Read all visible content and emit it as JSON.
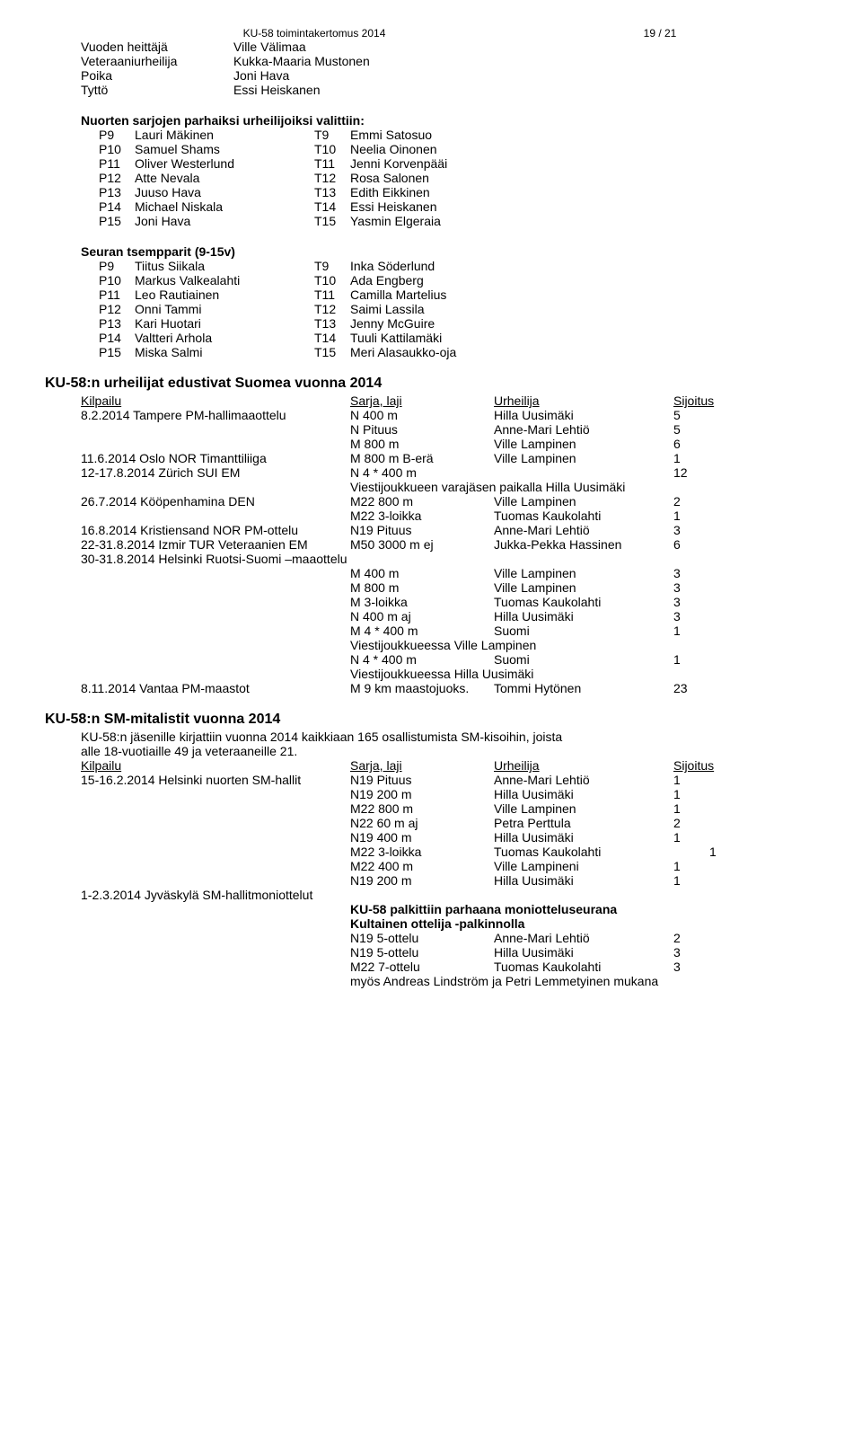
{
  "header": {
    "title": "KU-58  toimintakertomus 2014",
    "page": "19 / 21"
  },
  "awards": [
    {
      "label": "Vuoden heittäjä",
      "name": "Ville Välimaa"
    },
    {
      "label": "Veteraaniurheilija",
      "name": "Kukka-Maaria Mustonen"
    },
    {
      "label": "Poika",
      "name": "Joni Hava"
    },
    {
      "label": "Tyttö",
      "name": "Essi Heiskanen"
    }
  ],
  "nuorten_title": "Nuorten sarjojen parhaiksi urheilijoiksi valittiin:",
  "nuorten": [
    {
      "p": "P9",
      "pn": "Lauri Mäkinen",
      "t": "T9",
      "tn": "Emmi Satosuo"
    },
    {
      "p": "P10",
      "pn": "Samuel Shams",
      "t": "T10",
      "tn": "Neelia Oinonen"
    },
    {
      "p": "P11",
      "pn": "Oliver Westerlund",
      "t": "T11",
      "tn": "Jenni Korvenpääi"
    },
    {
      "p": "P12",
      "pn": "Atte Nevala",
      "t": "T12",
      "tn": "Rosa Salonen"
    },
    {
      "p": "P13",
      "pn": "Juuso Hava",
      "t": "T13",
      "tn": "Edith Eikkinen"
    },
    {
      "p": "P14",
      "pn": "Michael Niskala",
      "t": "T14",
      "tn": "Essi Heiskanen"
    },
    {
      "p": "P15",
      "pn": "Joni Hava",
      "t": "T15",
      "tn": "Yasmin Elgeraia"
    }
  ],
  "tsempparit_title": "Seuran tsempparit (9-15v)",
  "tsempparit": [
    {
      "p": "P9",
      "pn": "Tiitus Siikala",
      "t": "T9",
      "tn": "Inka Söderlund"
    },
    {
      "p": "P10",
      "pn": "Markus Valkealahti",
      "t": "T10",
      "tn": "Ada Engberg"
    },
    {
      "p": "P11",
      "pn": "Leo Rautiainen",
      "t": "T11",
      "tn": "Camilla Martelius"
    },
    {
      "p": "P12",
      "pn": "Onni Tammi",
      "t": "T12",
      "tn": "Saimi Lassila"
    },
    {
      "p": "P13",
      "pn": "Kari Huotari",
      "t": "T13",
      "tn": "Jenny McGuire"
    },
    {
      "p": "P14",
      "pn": "Valtteri Arhola",
      "t": "T14",
      "tn": "Tuuli Kattilamäki"
    },
    {
      "p": "P15",
      "pn": "Miska Salmi",
      "t": "T15",
      "tn": "Meri Alasaukko-oja"
    }
  ],
  "suomea_title": "KU-58:n urheilijat edustivat Suomea vuonna 2014",
  "thead": {
    "c1": "Kilpailu",
    "c2": "Sarja, laji",
    "c3": "Urheilija",
    "c4": "Sijoitus"
  },
  "suomea": [
    {
      "k1": "8.2.2014 Tampere PM-hallimaaottelu",
      "k2": "N 400 m",
      "k3": "Hilla Uusimäki",
      "k4": "5"
    },
    {
      "k1": "",
      "k2": "N Pituus",
      "k3": "Anne-Mari Lehtiö",
      "k4": "5"
    },
    {
      "k1": "",
      "k2": "M 800 m",
      "k3": "Ville Lampinen",
      "k4": "6"
    },
    {
      "k1": "11.6.2014 Oslo NOR Timanttiliiga",
      "k2": "M 800 m B-erä",
      "k3": "Ville Lampinen",
      "k4": "1"
    },
    {
      "k1": "12-17.8.2014 Zürich SUI EM",
      "k2": "N 4 * 400 m",
      "k3": "",
      "k4": "12"
    }
  ],
  "suomea_note1": "Viestijoukkueen varajäsen paikalla Hilla Uusimäki",
  "suomea2": [
    {
      "k1": "26.7.2014 Kööpenhamina DEN",
      "k2": "M22 800 m",
      "k3": "Ville Lampinen",
      "k4": "2"
    },
    {
      "k1": "",
      "k2": "M22 3-loikka",
      "k3": "Tuomas Kaukolahti",
      "k4": "1"
    },
    {
      "k1": "16.8.2014 Kristiensand NOR PM-ottelu",
      "k2": "N19 Pituus",
      "k3": "Anne-Mari Lehtiö",
      "k4": "3"
    },
    {
      "k1": "22-31.8.2014 Izmir TUR Veteraanien EM",
      "k2": "M50 3000 m ej",
      "k3": "Jukka-Pekka Hassinen",
      "k4": "6"
    },
    {
      "k1": "30-31.8.2014 Helsinki Ruotsi-Suomi –maaottelu",
      "k2": "",
      "k3": "",
      "k4": ""
    },
    {
      "k1": "",
      "k2": "M 400 m",
      "k3": "Ville Lampinen",
      "k4": "3"
    },
    {
      "k1": "",
      "k2": "M 800 m",
      "k3": "Ville Lampinen",
      "k4": "3"
    },
    {
      "k1": "",
      "k2": "M 3-loikka",
      "k3": "Tuomas Kaukolahti",
      "k4": "3"
    },
    {
      "k1": "",
      "k2": "N 400 m aj",
      "k3": "Hilla Uusimäki",
      "k4": "3"
    },
    {
      "k1": "",
      "k2": "M 4 * 400 m",
      "k3": "Suomi",
      "k4": "1"
    }
  ],
  "suomea_note2": "Viestijoukkueessa Ville Lampinen",
  "suomea3": [
    {
      "k1": "",
      "k2": "N 4 * 400 m",
      "k3": "Suomi",
      "k4": "1"
    }
  ],
  "suomea_note3": "Viestijoukkueessa Hilla Uusimäki",
  "suomea4": [
    {
      "k1": "8.11.2014 Vantaa PM-maastot",
      "k2": "M 9 km maastojuoks.",
      "k3": "Tommi Hytönen",
      "k4": "23"
    }
  ],
  "sm_title": "KU-58:n SM-mitalistit vuonna 2014",
  "sm_intro1": "KU-58:n jäsenille kirjattiin vuonna 2014 kaikkiaan 165 osallistumista SM-kisoihin, joista",
  "sm_intro2": "alle 18-vuotiaille 49 ja veteraaneille 21.",
  "sm": [
    {
      "k1": "15-16.2.2014 Helsinki nuorten SM-hallit",
      "k2": "N19 Pituus",
      "k3": "Anne-Mari Lehtiö",
      "k4": "1"
    },
    {
      "k1": "",
      "k2": "N19 200 m",
      "k3": "Hilla Uusimäki",
      "k4": "1"
    },
    {
      "k1": "",
      "k2": "M22 800 m",
      "k3": "Ville Lampinen",
      "k4": "1"
    },
    {
      "k1": "",
      "k2": "N22 60 m aj",
      "k3": "Petra Perttula",
      "k4": "2"
    },
    {
      "k1": "",
      "k2": "N19 400 m",
      "k3": "Hilla Uusimäki",
      "k4": "1"
    },
    {
      "k1": "",
      "k2": "M22 3-loikka",
      "k3": "Tuomas Kaukolahti",
      "k4": "1",
      "offset": true
    },
    {
      "k1": "",
      "k2": "M22 400 m",
      "k3": "Ville Lampineni",
      "k4": "1"
    },
    {
      "k1": "",
      "k2": "N19 200 m",
      "k3": "Hilla Uusimäki",
      "k4": "1"
    },
    {
      "k1": "1-2.3.2014 Jyväskylä SM-hallitmoniottelut",
      "k2": "",
      "k3": "",
      "k4": ""
    }
  ],
  "sm_bold1": "KU-58 palkittiin parhaana moniotteluseurana",
  "sm_bold2": "Kultainen ottelija -palkinnolla",
  "sm2": [
    {
      "k1": "",
      "k2": "N19 5-ottelu",
      "k3": "Anne-Mari Lehtiö",
      "k4": "2"
    },
    {
      "k1": "",
      "k2": "N19 5-ottelu",
      "k3": "Hilla Uusimäki",
      "k4": "3"
    },
    {
      "k1": "",
      "k2": "M22 7-ottelu",
      "k3": "Tuomas Kaukolahti",
      "k4": "3"
    }
  ],
  "sm_note": "myös  Andreas Lindström ja Petri Lemmetyinen mukana"
}
